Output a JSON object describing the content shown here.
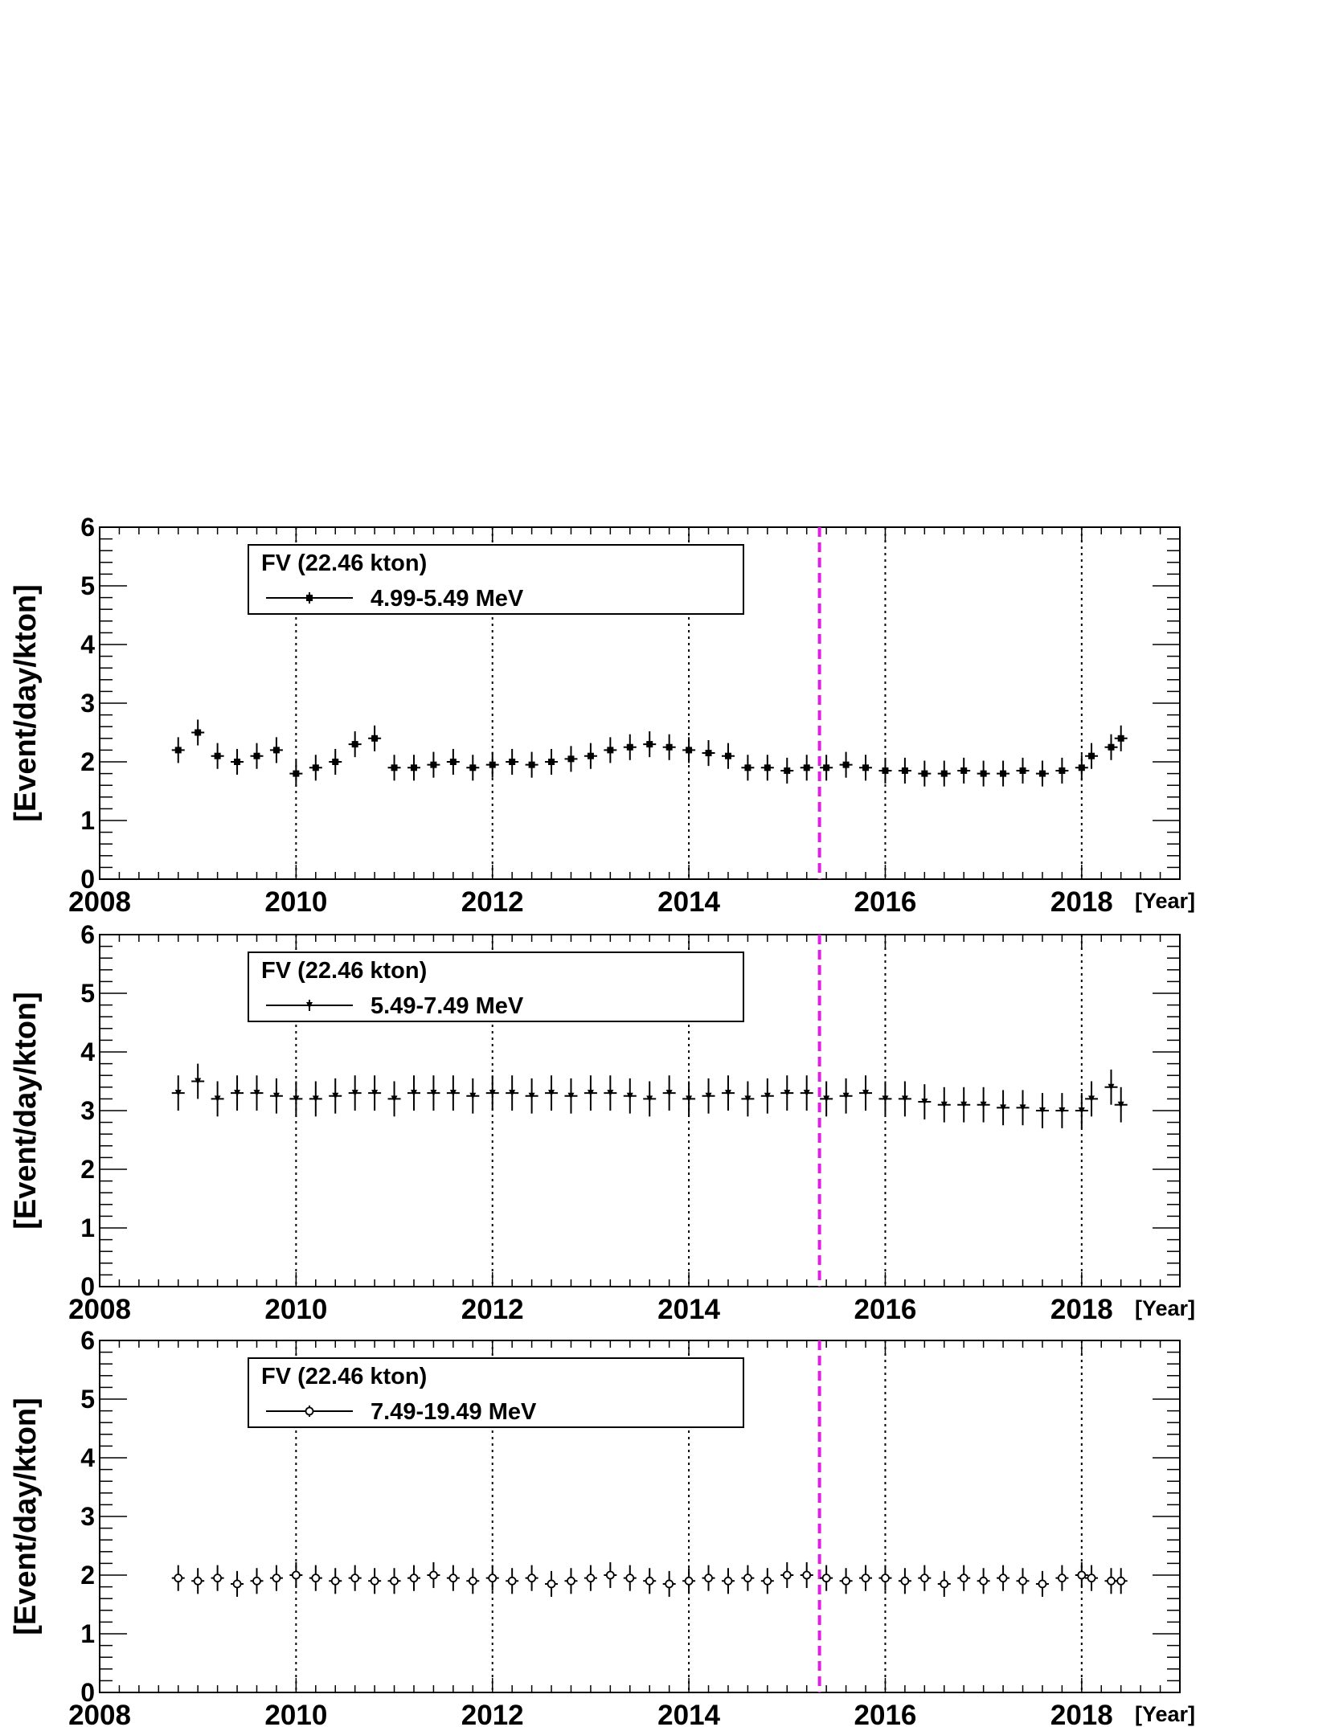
{
  "chart_data": [
    {
      "type": "scatter",
      "title": "",
      "xlabel": "[Year]",
      "ylabel": "[Event/day/kton]",
      "xlim": [
        2008,
        2019
      ],
      "ylim": [
        0,
        6
      ],
      "x_ticks": [
        "2008",
        "2010",
        "2012",
        "2014",
        "2016",
        "2018"
      ],
      "y_ticks": [
        "0",
        "1",
        "2",
        "3",
        "4",
        "5",
        "6"
      ],
      "vertical_dotted_lines": [
        2010,
        2012,
        2014,
        2016,
        2018
      ],
      "vertical_dashed_line": {
        "x": 2015.33,
        "color": "#e020e0"
      },
      "legend": {
        "header": "FV (22.46 kton)",
        "entry": "4.99-5.49 MeV",
        "marker": "square",
        "placement": "top-left"
      },
      "series": [
        {
          "marker": "square",
          "error": 0.22,
          "x": [
            2008.8,
            2009.0,
            2009.2,
            2009.4,
            2009.6,
            2009.8,
            2010.0,
            2010.2,
            2010.4,
            2010.6,
            2010.8,
            2011.0,
            2011.2,
            2011.4,
            2011.6,
            2011.8,
            2012.0,
            2012.2,
            2012.4,
            2012.6,
            2012.8,
            2013.0,
            2013.2,
            2013.4,
            2013.6,
            2013.8,
            2014.0,
            2014.2,
            2014.4,
            2014.6,
            2014.8,
            2015.0,
            2015.2,
            2015.4,
            2015.6,
            2015.8,
            2016.0,
            2016.2,
            2016.4,
            2016.6,
            2016.8,
            2017.0,
            2017.2,
            2017.4,
            2017.6,
            2017.8,
            2018.0,
            2018.1,
            2018.3,
            2018.4
          ],
          "y": [
            2.2,
            2.5,
            2.1,
            2.0,
            2.1,
            2.2,
            1.8,
            1.9,
            2.0,
            2.3,
            2.4,
            1.9,
            1.9,
            1.95,
            2.0,
            1.9,
            1.95,
            2.0,
            1.95,
            2.0,
            2.05,
            2.1,
            2.2,
            2.25,
            2.3,
            2.25,
            2.2,
            2.15,
            2.1,
            1.9,
            1.9,
            1.85,
            1.9,
            1.9,
            1.95,
            1.9,
            1.85,
            1.85,
            1.8,
            1.8,
            1.85,
            1.8,
            1.8,
            1.85,
            1.8,
            1.85,
            1.9,
            2.1,
            2.25,
            2.4
          ]
        }
      ]
    },
    {
      "type": "scatter",
      "title": "",
      "xlabel": "[Year]",
      "ylabel": "[Event/day/kton]",
      "xlim": [
        2008,
        2019
      ],
      "ylim": [
        0,
        6
      ],
      "x_ticks": [
        "2008",
        "2010",
        "2012",
        "2014",
        "2016",
        "2018"
      ],
      "y_ticks": [
        "0",
        "1",
        "2",
        "3",
        "4",
        "5",
        "6"
      ],
      "vertical_dotted_lines": [
        2010,
        2012,
        2014,
        2016,
        2018
      ],
      "vertical_dashed_line": {
        "x": 2015.33,
        "color": "#e020e0"
      },
      "legend": {
        "header": "FV (22.46 kton)",
        "entry": "5.49-7.49 MeV",
        "marker": "triangle-down",
        "placement": "top-left"
      },
      "series": [
        {
          "marker": "triangle-down",
          "error": 0.3,
          "x": [
            2008.8,
            2009.0,
            2009.2,
            2009.4,
            2009.6,
            2009.8,
            2010.0,
            2010.2,
            2010.4,
            2010.6,
            2010.8,
            2011.0,
            2011.2,
            2011.4,
            2011.6,
            2011.8,
            2012.0,
            2012.2,
            2012.4,
            2012.6,
            2012.8,
            2013.0,
            2013.2,
            2013.4,
            2013.6,
            2013.8,
            2014.0,
            2014.2,
            2014.4,
            2014.6,
            2014.8,
            2015.0,
            2015.2,
            2015.4,
            2015.6,
            2015.8,
            2016.0,
            2016.2,
            2016.4,
            2016.6,
            2016.8,
            2017.0,
            2017.2,
            2017.4,
            2017.6,
            2017.8,
            2018.0,
            2018.1,
            2018.3,
            2018.4
          ],
          "y": [
            3.3,
            3.5,
            3.2,
            3.3,
            3.3,
            3.25,
            3.2,
            3.2,
            3.25,
            3.3,
            3.3,
            3.2,
            3.3,
            3.3,
            3.3,
            3.25,
            3.3,
            3.3,
            3.25,
            3.3,
            3.25,
            3.3,
            3.3,
            3.25,
            3.2,
            3.3,
            3.2,
            3.25,
            3.3,
            3.2,
            3.25,
            3.3,
            3.3,
            3.2,
            3.25,
            3.3,
            3.2,
            3.2,
            3.15,
            3.1,
            3.1,
            3.1,
            3.05,
            3.05,
            3.0,
            3.0,
            3.0,
            3.2,
            3.4,
            3.1
          ]
        }
      ]
    },
    {
      "type": "scatter",
      "title": "",
      "xlabel": "[Year]",
      "ylabel": "[Event/day/kton]",
      "xlim": [
        2008,
        2019
      ],
      "ylim": [
        0,
        6
      ],
      "x_ticks": [
        "2008",
        "2010",
        "2012",
        "2014",
        "2016",
        "2018"
      ],
      "y_ticks": [
        "0",
        "1",
        "2",
        "3",
        "4",
        "5",
        "6"
      ],
      "vertical_dotted_lines": [
        2010,
        2012,
        2014,
        2016,
        2018
      ],
      "vertical_dashed_line": {
        "x": 2015.33,
        "color": "#e020e0"
      },
      "legend": {
        "header": "FV (22.46 kton)",
        "entry": "7.49-19.49 MeV",
        "marker": "circle-open",
        "placement": "top-left"
      },
      "series": [
        {
          "marker": "circle-open",
          "error": 0.22,
          "x": [
            2008.8,
            2009.0,
            2009.2,
            2009.4,
            2009.6,
            2009.8,
            2010.0,
            2010.2,
            2010.4,
            2010.6,
            2010.8,
            2011.0,
            2011.2,
            2011.4,
            2011.6,
            2011.8,
            2012.0,
            2012.2,
            2012.4,
            2012.6,
            2012.8,
            2013.0,
            2013.2,
            2013.4,
            2013.6,
            2013.8,
            2014.0,
            2014.2,
            2014.4,
            2014.6,
            2014.8,
            2015.0,
            2015.2,
            2015.4,
            2015.6,
            2015.8,
            2016.0,
            2016.2,
            2016.4,
            2016.6,
            2016.8,
            2017.0,
            2017.2,
            2017.4,
            2017.6,
            2017.8,
            2018.0,
            2018.1,
            2018.3,
            2018.4
          ],
          "y": [
            1.95,
            1.9,
            1.95,
            1.85,
            1.9,
            1.95,
            2.0,
            1.95,
            1.9,
            1.95,
            1.9,
            1.9,
            1.95,
            2.0,
            1.95,
            1.9,
            1.95,
            1.9,
            1.95,
            1.85,
            1.9,
            1.95,
            2.0,
            1.95,
            1.9,
            1.85,
            1.9,
            1.95,
            1.9,
            1.95,
            1.9,
            2.0,
            2.0,
            1.95,
            1.9,
            1.95,
            1.95,
            1.9,
            1.95,
            1.85,
            1.95,
            1.9,
            1.95,
            1.9,
            1.85,
            1.95,
            2.0,
            1.95,
            1.9,
            1.9
          ]
        }
      ]
    }
  ]
}
